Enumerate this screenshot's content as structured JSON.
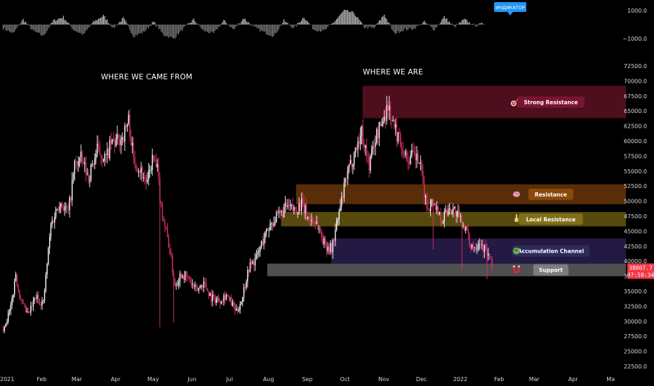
{
  "chart_data": {
    "type": "candlestick",
    "symbol_tooltip": "ИНДИКАТОР",
    "annotations": [
      "WHERE WE CAME FROM",
      "WHERE WE ARE"
    ],
    "y_axis": {
      "ylim": [
        22000,
        75500
      ],
      "ticks": [
        "72500.0",
        "70000.0",
        "67500.0",
        "65000.0",
        "62500.0",
        "60000.0",
        "57500.0",
        "55000.0",
        "52500.0",
        "50000.0",
        "47500.0",
        "45000.0",
        "42500.0",
        "40000.0",
        "37500.0",
        "35000.0",
        "32500.0",
        "30000.0",
        "27500.0",
        "25000.0",
        "22500.0"
      ],
      "tick_values": [
        72500,
        70000,
        67500,
        65000,
        62500,
        60000,
        57500,
        55000,
        52500,
        50000,
        47500,
        45000,
        42500,
        40000,
        37500,
        35000,
        32500,
        30000,
        27500,
        25000,
        22500
      ]
    },
    "oscillator_axis": {
      "ticks": [
        "1000.0",
        "−1000.0"
      ],
      "tick_values": [
        1000,
        -1000
      ]
    },
    "x_axis": {
      "ticks": [
        "2021",
        "Feb",
        "Mar",
        "Apr",
        "May",
        "Jun",
        "Jul",
        "Aug",
        "Sep",
        "Oct",
        "Nov",
        "Dec",
        "2022",
        "Feb",
        "Mar",
        "Apr",
        "Ma"
      ],
      "tick_days": [
        0,
        31,
        59,
        90,
        120,
        151,
        181,
        212,
        243,
        273,
        304,
        334,
        365,
        396,
        424,
        455,
        485
      ]
    },
    "last_price": {
      "value": "38807.7",
      "countdown": "07:58:34",
      "color": "#f23645"
    },
    "zones": [
      {
        "label": "Strong Resistance",
        "low": 63800,
        "high": 69200,
        "start_day": 287,
        "fill": "#8c1a35",
        "fill_opacity": 0.55,
        "label_bg": "#7a1430",
        "icon": "target-icon"
      },
      {
        "label": "Resistance",
        "low": 49500,
        "high": 52800,
        "start_day": 234,
        "fill": "#a0520e",
        "fill_opacity": 0.55,
        "label_bg": "#8a4a0a",
        "icon": "brain-icon"
      },
      {
        "label": "Local Resistance",
        "low": 45800,
        "high": 48200,
        "start_day": 222,
        "fill": "#8d7a14",
        "fill_opacity": 0.6,
        "label_bg": "#7f7018",
        "icon": "hand-icon"
      },
      {
        "label": "Accumulation Channel",
        "low": 39600,
        "high": 43800,
        "start_day": 262,
        "fill": "#3b2a70",
        "fill_opacity": 0.6,
        "label_bg": "#2e2a5e",
        "icon": "globe-icon"
      },
      {
        "label": "Support",
        "low": 37500,
        "high": 39600,
        "start_day": 211,
        "fill": "#6a6a6a",
        "fill_opacity": 0.75,
        "label_bg": "#7d7d7d",
        "icon": "magnet-icon"
      }
    ],
    "price_keypoints": [
      [
        0,
        29000
      ],
      [
        6,
        32000
      ],
      [
        10,
        38000
      ],
      [
        14,
        33000
      ],
      [
        20,
        31000
      ],
      [
        26,
        34000
      ],
      [
        32,
        33000
      ],
      [
        38,
        46000
      ],
      [
        45,
        50000
      ],
      [
        52,
        48000
      ],
      [
        57,
        56000
      ],
      [
        62,
        57000
      ],
      [
        68,
        54000
      ],
      [
        75,
        58500
      ],
      [
        82,
        57000
      ],
      [
        86,
        59500
      ],
      [
        92,
        60000
      ],
      [
        96,
        61000
      ],
      [
        100,
        63500
      ],
      [
        104,
        57000
      ],
      [
        110,
        55000
      ],
      [
        115,
        53000
      ],
      [
        119,
        57000
      ],
      [
        123,
        55000
      ],
      [
        126,
        49000
      ],
      [
        132,
        43000
      ],
      [
        137,
        36000
      ],
      [
        142,
        38000
      ],
      [
        148,
        37000
      ],
      [
        154,
        35000
      ],
      [
        160,
        36500
      ],
      [
        166,
        34000
      ],
      [
        172,
        33500
      ],
      [
        178,
        34500
      ],
      [
        186,
        31500
      ],
      [
        190,
        33500
      ],
      [
        196,
        39000
      ],
      [
        202,
        40500
      ],
      [
        208,
        44000
      ],
      [
        214,
        46500
      ],
      [
        220,
        47500
      ],
      [
        226,
        49000
      ],
      [
        232,
        48500
      ],
      [
        238,
        49500
      ],
      [
        244,
        47000
      ],
      [
        250,
        46500
      ],
      [
        256,
        43000
      ],
      [
        262,
        42000
      ],
      [
        268,
        48000
      ],
      [
        274,
        54000
      ],
      [
        280,
        58000
      ],
      [
        286,
        61500
      ],
      [
        292,
        56000
      ],
      [
        297,
        60500
      ],
      [
        302,
        63000
      ],
      [
        307,
        66000
      ],
      [
        312,
        62000
      ],
      [
        316,
        60500
      ],
      [
        322,
        57000
      ],
      [
        328,
        57500
      ],
      [
        332,
        56500
      ],
      [
        338,
        49000
      ],
      [
        343,
        50000
      ],
      [
        350,
        47000
      ],
      [
        356,
        49000
      ],
      [
        360,
        48500
      ],
      [
        364,
        47000
      ],
      [
        368,
        46000
      ],
      [
        372,
        43000
      ],
      [
        376,
        42500
      ],
      [
        380,
        43500
      ],
      [
        384,
        42000
      ],
      [
        387,
        41000
      ],
      [
        390,
        38807
      ]
    ],
    "oscillator_keypoints": [
      [
        0,
        -300
      ],
      [
        8,
        -700
      ],
      [
        16,
        400
      ],
      [
        24,
        -500
      ],
      [
        32,
        -900
      ],
      [
        40,
        300
      ],
      [
        48,
        600
      ],
      [
        56,
        -400
      ],
      [
        64,
        -800
      ],
      [
        72,
        200
      ],
      [
        80,
        700
      ],
      [
        88,
        -300
      ],
      [
        96,
        500
      ],
      [
        104,
        -900
      ],
      [
        112,
        -600
      ],
      [
        120,
        200
      ],
      [
        128,
        -800
      ],
      [
        136,
        -1100
      ],
      [
        144,
        -300
      ],
      [
        152,
        400
      ],
      [
        160,
        -500
      ],
      [
        168,
        -700
      ],
      [
        176,
        300
      ],
      [
        184,
        -400
      ],
      [
        192,
        500
      ],
      [
        200,
        -200
      ],
      [
        208,
        -600
      ],
      [
        216,
        -900
      ],
      [
        224,
        300
      ],
      [
        232,
        -300
      ],
      [
        240,
        600
      ],
      [
        248,
        -400
      ],
      [
        256,
        -500
      ],
      [
        264,
        200
      ],
      [
        272,
        1100
      ],
      [
        280,
        900
      ],
      [
        288,
        -200
      ],
      [
        296,
        -300
      ],
      [
        304,
        800
      ],
      [
        312,
        -700
      ],
      [
        320,
        -400
      ],
      [
        328,
        -300
      ],
      [
        336,
        200
      ],
      [
        344,
        -400
      ],
      [
        352,
        600
      ],
      [
        360,
        -200
      ],
      [
        368,
        400
      ],
      [
        376,
        -100
      ],
      [
        384,
        100
      ]
    ]
  }
}
